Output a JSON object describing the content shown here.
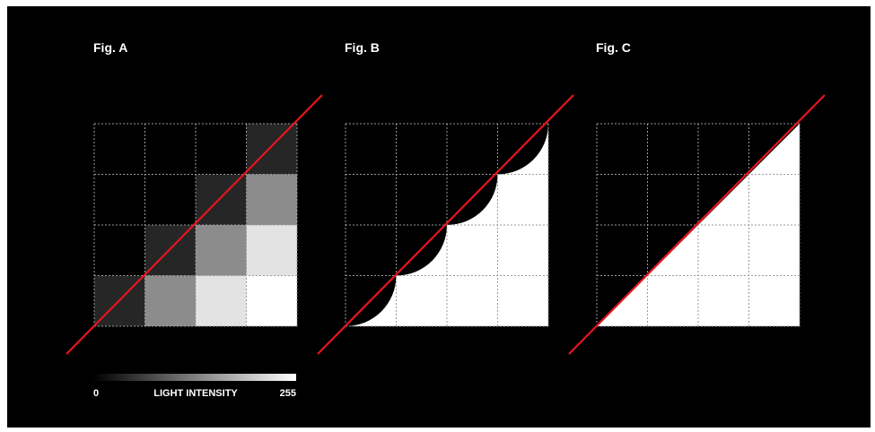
{
  "figures": [
    {
      "title": "Fig. A"
    },
    {
      "title": "Fig. B"
    },
    {
      "title": "Fig. C"
    }
  ],
  "intensity_scale": {
    "min_label": "0",
    "label": "LIGHT INTENSITY",
    "max_label": "255"
  },
  "colors": {
    "background": "#000000",
    "line": "#e8141c",
    "grid": "#9a9a9a",
    "fill": "#ffffff"
  },
  "fig_a_cells": [
    {
      "row": 0,
      "col": 3,
      "gray": "#262626"
    },
    {
      "row": 1,
      "col": 2,
      "gray": "#262626"
    },
    {
      "row": 1,
      "col": 3,
      "gray": "#8c8c8c"
    },
    {
      "row": 2,
      "col": 1,
      "gray": "#262626"
    },
    {
      "row": 2,
      "col": 2,
      "gray": "#8c8c8c"
    },
    {
      "row": 2,
      "col": 3,
      "gray": "#e3e3e3"
    },
    {
      "row": 3,
      "col": 0,
      "gray": "#262626"
    },
    {
      "row": 3,
      "col": 1,
      "gray": "#8c8c8c"
    },
    {
      "row": 3,
      "col": 2,
      "gray": "#e3e3e3"
    },
    {
      "row": 3,
      "col": 3,
      "gray": "#ffffff"
    }
  ]
}
